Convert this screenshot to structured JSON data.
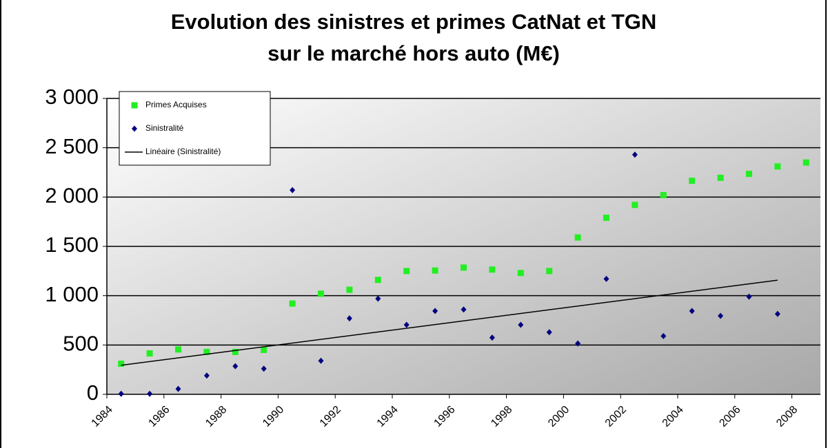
{
  "chart_data": {
    "type": "scatter",
    "title": [
      "Evolution des sinistres et primes CatNat et TGN",
      "sur le marché hors auto (M€)"
    ],
    "categories": [
      "1984",
      null,
      "1986",
      null,
      "1988",
      null,
      "1990",
      null,
      "1992",
      null,
      "1994",
      null,
      "1996",
      null,
      "1998",
      null,
      "2000",
      null,
      "2002",
      null,
      "2004",
      null,
      "2006",
      null,
      "2008"
    ],
    "series": [
      {
        "name": "Primes Acquises",
        "color": "#22ee22",
        "marker": "square",
        "values": [
          310,
          415,
          455,
          430,
          430,
          450,
          920,
          1020,
          1060,
          1160,
          1250,
          1255,
          1285,
          1265,
          1230,
          1250,
          1590,
          1790,
          1920,
          2020,
          2165,
          2195,
          2235,
          2310,
          2350
        ]
      },
      {
        "name": "Sinistralité",
        "color": "#000080",
        "marker": "diamond",
        "values": [
          5,
          5,
          55,
          190,
          285,
          260,
          2070,
          340,
          770,
          970,
          705,
          845,
          860,
          575,
          705,
          630,
          515,
          1170,
          2430,
          590,
          845,
          795,
          990,
          815,
          null
        ],
        "trendline": {
          "name": "Linéaire (Sinistralité)",
          "type": "linear",
          "color": "#000000"
        }
      }
    ],
    "ylim": [
      0,
      3000
    ],
    "yticks": [
      0,
      500,
      {
        "value": 1000,
        "label": "1 000"
      },
      {
        "value": 1500,
        "label": "1 500"
      },
      {
        "value": 2000,
        "label": "2 000"
      },
      {
        "value": 2500,
        "label": "2 500"
      },
      {
        "value": 3000,
        "label": "3 000"
      }
    ],
    "grid": true,
    "legend": "top-left"
  }
}
